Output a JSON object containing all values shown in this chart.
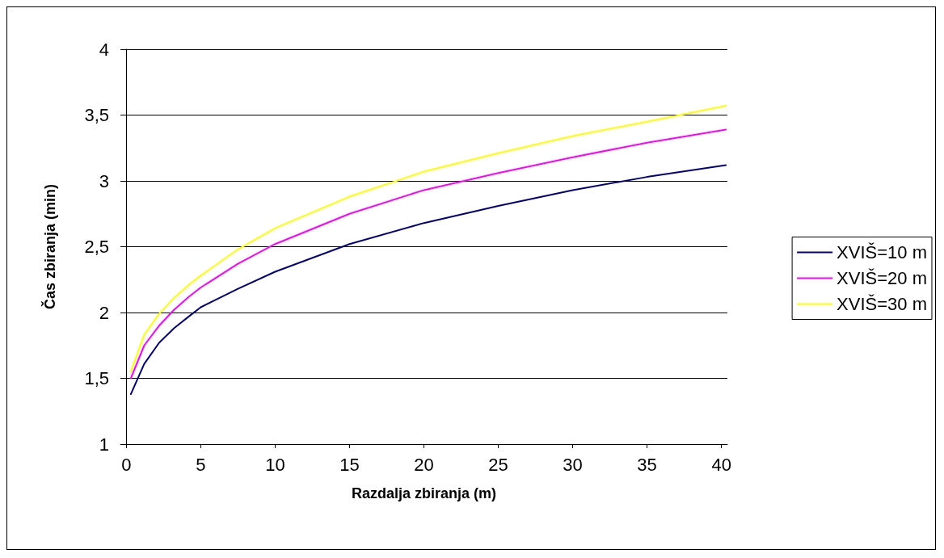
{
  "chart_data": {
    "type": "line",
    "xlabel": "Razdalja zbiranja (m)",
    "ylabel": "Čas zbiranja (min)",
    "x": [
      0.3,
      1.2,
      2.2,
      3.2,
      4.2,
      5,
      7.5,
      10,
      15,
      20,
      25,
      30,
      35,
      40.3
    ],
    "series": [
      {
        "name": "XVIŠ=10 m",
        "color": "#000080",
        "values": [
          1.38,
          1.61,
          1.77,
          1.88,
          1.97,
          2.04,
          2.18,
          2.31,
          2.52,
          2.68,
          2.81,
          2.93,
          3.03,
          3.12
        ]
      },
      {
        "name": "XVIŠ=20 m",
        "color": "#ff00ff",
        "values": [
          1.5,
          1.75,
          1.9,
          2.02,
          2.12,
          2.19,
          2.37,
          2.52,
          2.75,
          2.93,
          3.06,
          3.18,
          3.29,
          3.39
        ]
      },
      {
        "name": "XVIŠ=30 m",
        "color": "#ffff00",
        "values": [
          1.55,
          1.83,
          1.99,
          2.11,
          2.21,
          2.28,
          2.48,
          2.64,
          2.88,
          3.07,
          3.21,
          3.34,
          3.45,
          3.57
        ]
      }
    ],
    "xlim": [
      -0.4,
      40.4
    ],
    "xticks": [
      0,
      5,
      10,
      15,
      20,
      25,
      30,
      35,
      40
    ],
    "ylim": [
      1,
      4
    ],
    "yticks": [
      1,
      {
        "value": 1.5,
        "label": "1,5"
      },
      2,
      {
        "value": 2.5,
        "label": "2,5"
      },
      3,
      {
        "value": 3.5,
        "label": "3,5"
      },
      4
    ],
    "grid": "y",
    "legend": "right",
    "marker": "none",
    "line_style": "solid"
  }
}
